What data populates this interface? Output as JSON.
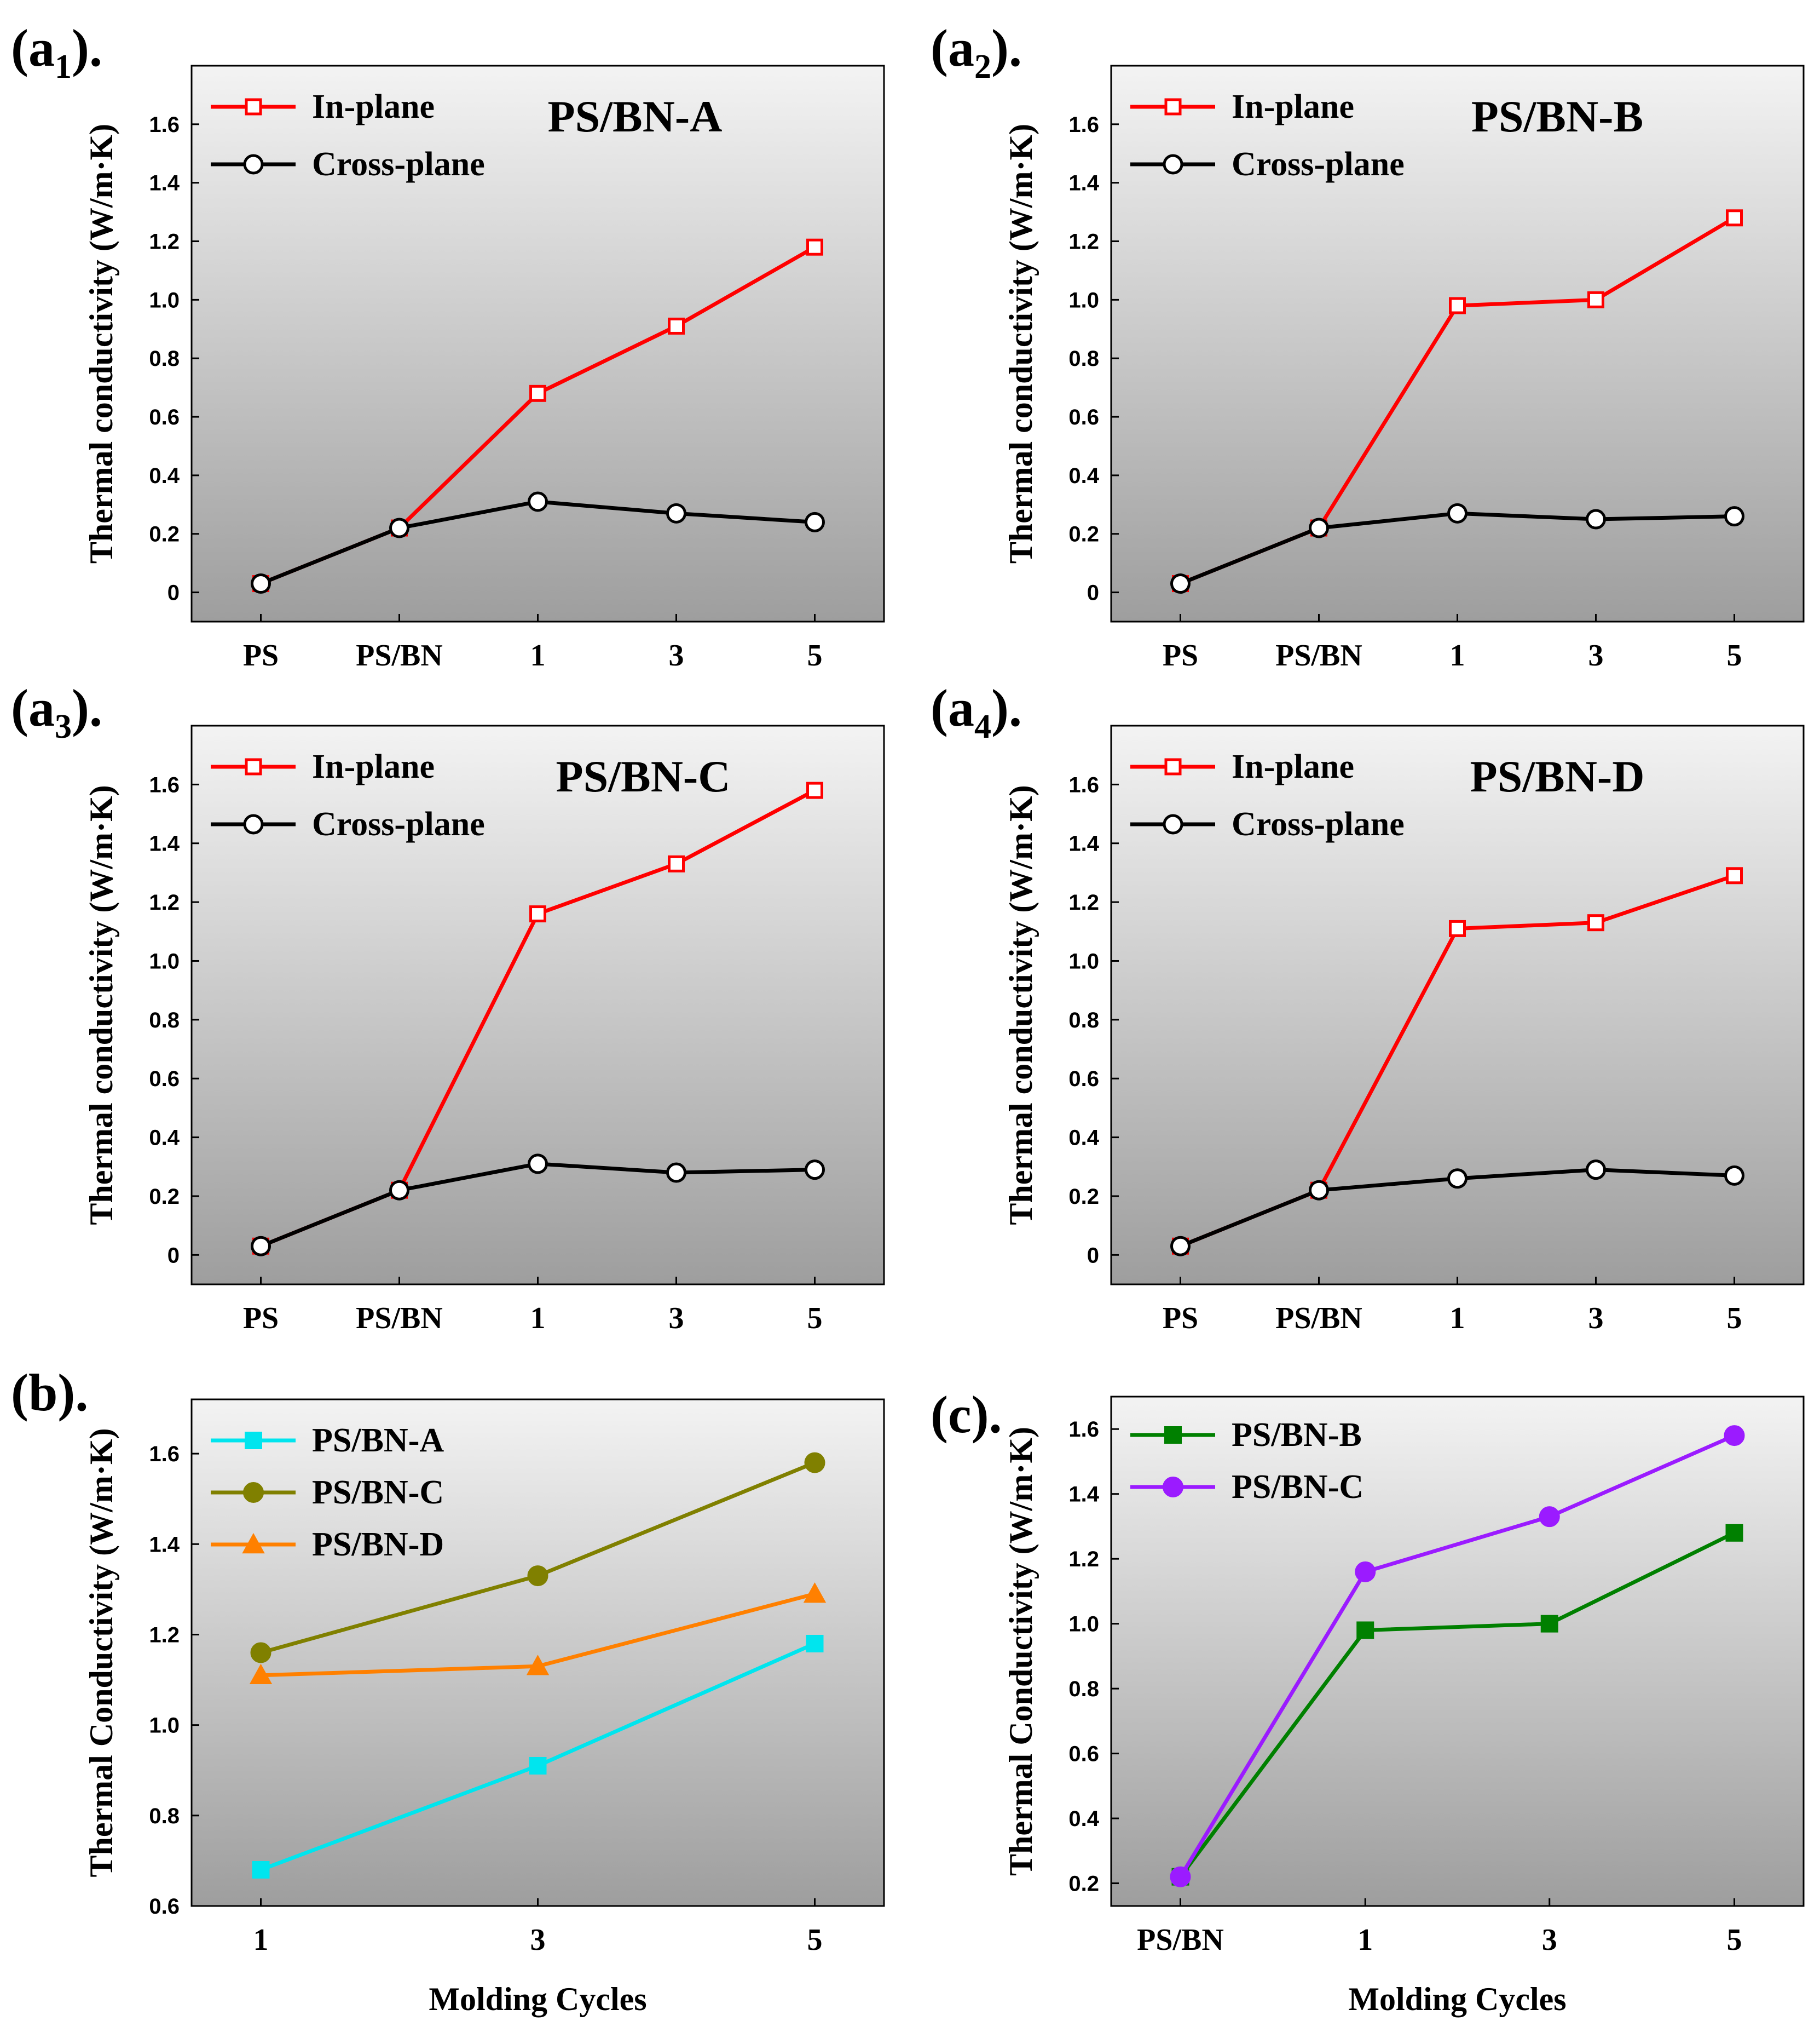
{
  "figure": {
    "panels_row1": [
      {
        "panel_label": "(a",
        "panel_sub": "1",
        "panel_suffix": ")."
      },
      {
        "panel_label": "(a",
        "panel_sub": "2",
        "panel_suffix": ")."
      }
    ],
    "panels_row2": [
      {
        "panel_label": "(a",
        "panel_sub": "3",
        "panel_suffix": ")."
      },
      {
        "panel_label": "(a",
        "panel_sub": "4",
        "panel_suffix": ")."
      }
    ],
    "panel_b_label": "(b).",
    "panel_c_label": "(c)."
  },
  "chart_data": [
    {
      "id": "a1",
      "type": "line",
      "title": "PS/BN-A",
      "xlabel": "",
      "ylabel": "Thermal conductivity (W/m·K)",
      "categories": [
        "PS",
        "PS/BN",
        "1",
        "3",
        "5"
      ],
      "ylim": [
        -0.1,
        1.8
      ],
      "yticks": [
        0,
        0.2,
        0.4,
        0.6,
        0.8,
        1.0,
        1.2,
        1.4,
        1.6
      ],
      "ytick_labels": [
        "0",
        "0.2",
        "0.4",
        "0.6",
        "0.8",
        "1.0",
        "1.2",
        "1.4",
        "1.6"
      ],
      "legend_position": "top-left",
      "series": [
        {
          "name": "In-plane",
          "color": "#ff0000",
          "marker": "open-square",
          "values": [
            0.03,
            0.22,
            0.68,
            0.91,
            1.18
          ]
        },
        {
          "name": "Cross-plane",
          "color": "#000000",
          "marker": "open-circle",
          "values": [
            0.03,
            0.22,
            0.31,
            0.27,
            0.24
          ]
        }
      ]
    },
    {
      "id": "a2",
      "type": "line",
      "title": "PS/BN-B",
      "xlabel": "",
      "ylabel": "Thermal conductivity (W/m·K)",
      "categories": [
        "PS",
        "PS/BN",
        "1",
        "3",
        "5"
      ],
      "ylim": [
        -0.1,
        1.8
      ],
      "yticks": [
        0,
        0.2,
        0.4,
        0.6,
        0.8,
        1.0,
        1.2,
        1.4,
        1.6
      ],
      "ytick_labels": [
        "0",
        "0.2",
        "0.4",
        "0.6",
        "0.8",
        "1.0",
        "1.2",
        "1.4",
        "1.6"
      ],
      "legend_position": "top-left",
      "series": [
        {
          "name": "In-plane",
          "color": "#ff0000",
          "marker": "open-square",
          "values": [
            0.03,
            0.22,
            0.98,
            1.0,
            1.28
          ]
        },
        {
          "name": "Cross-plane",
          "color": "#000000",
          "marker": "open-circle",
          "values": [
            0.03,
            0.22,
            0.27,
            0.25,
            0.26
          ]
        }
      ]
    },
    {
      "id": "a3",
      "type": "line",
      "title": "PS/BN-C",
      "xlabel": "",
      "ylabel": "Thermal conductivity (W/m·K)",
      "categories": [
        "PS",
        "PS/BN",
        "1",
        "3",
        "5"
      ],
      "ylim": [
        -0.1,
        1.8
      ],
      "yticks": [
        0,
        0.2,
        0.4,
        0.6,
        0.8,
        1.0,
        1.2,
        1.4,
        1.6
      ],
      "ytick_labels": [
        "0",
        "0.2",
        "0.4",
        "0.6",
        "0.8",
        "1.0",
        "1.2",
        "1.4",
        "1.6"
      ],
      "legend_position": "top-left",
      "series": [
        {
          "name": "In-plane",
          "color": "#ff0000",
          "marker": "open-square",
          "values": [
            0.03,
            0.22,
            1.16,
            1.33,
            1.58
          ]
        },
        {
          "name": "Cross-plane",
          "color": "#000000",
          "marker": "open-circle",
          "values": [
            0.03,
            0.22,
            0.31,
            0.28,
            0.29
          ]
        }
      ]
    },
    {
      "id": "a4",
      "type": "line",
      "title": "PS/BN-D",
      "xlabel": "",
      "ylabel": "Thermal conductivity (W/m·K)",
      "categories": [
        "PS",
        "PS/BN",
        "1",
        "3",
        "5"
      ],
      "ylim": [
        -0.1,
        1.8
      ],
      "yticks": [
        0,
        0.2,
        0.4,
        0.6,
        0.8,
        1.0,
        1.2,
        1.4,
        1.6
      ],
      "ytick_labels": [
        "0",
        "0.2",
        "0.4",
        "0.6",
        "0.8",
        "1.0",
        "1.2",
        "1.4",
        "1.6"
      ],
      "legend_position": "top-left",
      "series": [
        {
          "name": "In-plane",
          "color": "#ff0000",
          "marker": "open-square",
          "values": [
            0.03,
            0.22,
            1.11,
            1.13,
            1.29
          ]
        },
        {
          "name": "Cross-plane",
          "color": "#000000",
          "marker": "open-circle",
          "values": [
            0.03,
            0.22,
            0.26,
            0.29,
            0.27
          ]
        }
      ]
    },
    {
      "id": "b",
      "type": "line",
      "title": "",
      "xlabel": "Molding Cycles",
      "ylabel": "Thermal Conductivity (W/m·K)",
      "categories": [
        "1",
        "3",
        "5"
      ],
      "ylim": [
        0.6,
        1.72
      ],
      "yticks": [
        0.6,
        0.8,
        1.0,
        1.2,
        1.4,
        1.6
      ],
      "ytick_labels": [
        "0.6",
        "0.8",
        "1.0",
        "1.2",
        "1.4",
        "1.6"
      ],
      "legend_position": "top-left",
      "series": [
        {
          "name": "PS/BN-A",
          "color": "#00e5ee",
          "marker": "filled-square",
          "values": [
            0.68,
            0.91,
            1.18
          ]
        },
        {
          "name": "PS/BN-C",
          "color": "#808000",
          "marker": "filled-circle",
          "values": [
            1.16,
            1.33,
            1.58
          ]
        },
        {
          "name": "PS/BN-D",
          "color": "#ff8000",
          "marker": "filled-triangle",
          "values": [
            1.11,
            1.13,
            1.29
          ]
        }
      ]
    },
    {
      "id": "c",
      "type": "line",
      "title": "",
      "xlabel": "Molding Cycles",
      "ylabel": "Thermal Conductivity (W/m·K)",
      "categories": [
        "PS/BN",
        "1",
        "3",
        "5"
      ],
      "ylim": [
        0.13,
        1.7
      ],
      "yticks": [
        0.2,
        0.4,
        0.6,
        0.8,
        1.0,
        1.2,
        1.4,
        1.6
      ],
      "ytick_labels": [
        "0.2",
        "0.4",
        "0.6",
        "0.8",
        "1.0",
        "1.2",
        "1.4",
        "1.6"
      ],
      "legend_position": "top-left",
      "series": [
        {
          "name": "PS/BN-B",
          "color": "#008000",
          "marker": "filled-square",
          "values": [
            0.22,
            0.98,
            1.0,
            1.28
          ]
        },
        {
          "name": "PS/BN-C",
          "color": "#9b1bff",
          "marker": "filled-circle",
          "values": [
            0.22,
            1.16,
            1.33,
            1.58
          ]
        }
      ]
    }
  ]
}
